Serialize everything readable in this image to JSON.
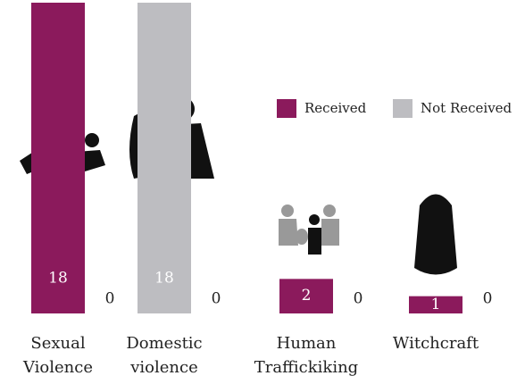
{
  "chart_data": {
    "type": "bar",
    "categories": [
      "Sexual Violence",
      "Domestic violence",
      "Human Traffickiking",
      "Witchcraft"
    ],
    "series": [
      {
        "name": "Received",
        "color": "#8b1a5c",
        "point_colors": [
          "#8b1a5c",
          "#bdbdc1",
          "#8b1a5c",
          "#8b1a5c"
        ],
        "values": [
          18,
          18,
          2,
          1
        ]
      },
      {
        "name": "Not Received",
        "color": "#bdbdc1",
        "values": [
          0,
          0,
          0,
          0
        ]
      }
    ],
    "ylim": [
      0,
      18
    ],
    "legend": "top-right"
  }
}
